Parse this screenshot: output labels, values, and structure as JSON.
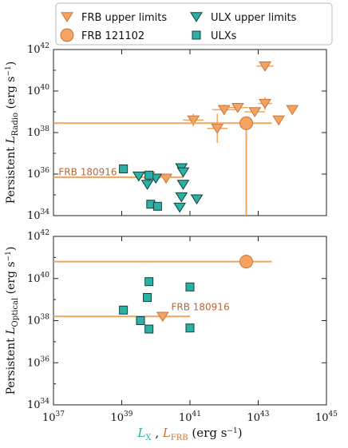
{
  "colors": {
    "frb": "#F4A460",
    "frb_edge": "#C8753A",
    "frb_line": "#F2A35E",
    "ulx": "#2AB0A4",
    "ulx_edge": "#13403C",
    "annot": "#B8693A",
    "axis_label_x": "#2AB0A4",
    "axis_label_frb": "#C8753A"
  },
  "legend": {
    "items": [
      {
        "label": "FRB upper limits",
        "marker": "triangle-down",
        "color": "frb"
      },
      {
        "label": "ULX upper limits",
        "marker": "triangle-down",
        "color": "ulx"
      },
      {
        "label": "FRB 121102",
        "marker": "circle",
        "color": "frb"
      },
      {
        "label": "ULXs",
        "marker": "square",
        "color": "ulx"
      }
    ]
  },
  "x_axis": {
    "label_part1": "L",
    "label_sub1": "X",
    "label_sep": " , ",
    "label_part2": "L",
    "label_sub2": "FRB",
    "label_units": " (erg s",
    "label_units_exp": "−1",
    "label_units_end": ")",
    "scale": "log",
    "xlim": [
      37,
      45
    ],
    "ticks": [
      {
        "exp": 37,
        "base": "10",
        "sup": "37"
      },
      {
        "exp": 39,
        "base": "10",
        "sup": "39"
      },
      {
        "exp": 41,
        "base": "10",
        "sup": "41"
      },
      {
        "exp": 43,
        "base": "10",
        "sup": "43"
      },
      {
        "exp": 45,
        "base": "10",
        "sup": "45"
      }
    ]
  },
  "chart_data": [
    {
      "type": "scatter",
      "panel": "top",
      "ylabel_prefix": "Persistent ",
      "ylabel_L": "L",
      "ylabel_sub": "Radio",
      "ylabel_units": " (erg s",
      "ylabel_exp": "−1",
      "ylabel_end": ")",
      "scale": "log",
      "ylim": [
        34,
        42
      ],
      "yticks": [
        {
          "exp": 34,
          "base": "10",
          "sup": "34"
        },
        {
          "exp": 36,
          "base": "10",
          "sup": "36"
        },
        {
          "exp": 38,
          "base": "10",
          "sup": "38"
        },
        {
          "exp": 40,
          "base": "10",
          "sup": "40"
        },
        {
          "exp": 42,
          "base": "10",
          "sup": "42"
        }
      ],
      "annotations": [
        {
          "text": "FRB 180916",
          "x": 37.15,
          "y": 35.95
        }
      ],
      "series": [
        {
          "name": "FRB upper limits",
          "marker": "triangle-down",
          "color": "frb",
          "points": [
            {
              "x": 43.2,
              "y": 41.2,
              "xerr": 0.25
            },
            {
              "x": 43.2,
              "y": 39.4,
              "xerr": 0.2,
              "yerr": 0.3
            },
            {
              "x": 42.0,
              "y": 39.1,
              "xerr": 0.35,
              "yerr": 0.25
            },
            {
              "x": 42.4,
              "y": 39.2,
              "xerr": 0.3
            },
            {
              "x": 42.9,
              "y": 39.0,
              "xerr": 0.3
            },
            {
              "x": 41.1,
              "y": 38.6,
              "xerr": 0.3,
              "yerr": 0.3
            },
            {
              "x": 41.8,
              "y": 38.2,
              "xerr": 0.3,
              "yerr": 0.7
            },
            {
              "x": 43.6,
              "y": 38.6
            },
            {
              "x": 44.0,
              "y": 39.1
            },
            {
              "x": 39.8,
              "y": 35.9
            },
            {
              "x": 40.3,
              "y": 35.8
            }
          ]
        },
        {
          "name": "FRB 121102",
          "marker": "circle",
          "color": "frb",
          "points": [
            {
              "x": 42.65,
              "y": 38.45,
              "xerr_lo": 5.65,
              "xerr_hi": 0.75,
              "yerr_lo": 4.45,
              "yerr_hi": 0.05
            }
          ]
        },
        {
          "name": "FRB 180916",
          "marker": "none",
          "color": "frb",
          "points": [
            {
              "x": 37.0,
              "y": 35.85,
              "x_end": 40.8
            }
          ]
        },
        {
          "name": "ULX upper limits",
          "marker": "triangle-down",
          "color": "ulx",
          "points": [
            {
              "x": 39.5,
              "y": 35.9
            },
            {
              "x": 39.75,
              "y": 35.5
            },
            {
              "x": 40.0,
              "y": 35.8
            },
            {
              "x": 40.75,
              "y": 36.3
            },
            {
              "x": 40.8,
              "y": 36.1
            },
            {
              "x": 40.8,
              "y": 35.5
            },
            {
              "x": 40.75,
              "y": 34.9
            },
            {
              "x": 40.7,
              "y": 34.4
            },
            {
              "x": 41.2,
              "y": 34.8
            }
          ]
        },
        {
          "name": "ULXs",
          "marker": "square",
          "color": "ulx",
          "points": [
            {
              "x": 39.05,
              "y": 36.25
            },
            {
              "x": 39.8,
              "y": 35.95
            },
            {
              "x": 39.85,
              "y": 34.55
            },
            {
              "x": 40.05,
              "y": 34.45
            }
          ]
        }
      ]
    },
    {
      "type": "scatter",
      "panel": "bottom",
      "ylabel_prefix": "Persistent ",
      "ylabel_L": "L",
      "ylabel_sub": "Optical",
      "ylabel_units": " (erg s",
      "ylabel_exp": "−1",
      "ylabel_end": ")",
      "scale": "log",
      "ylim": [
        34,
        42
      ],
      "yticks": [
        {
          "exp": 34,
          "base": "10",
          "sup": "34"
        },
        {
          "exp": 36,
          "base": "10",
          "sup": "36"
        },
        {
          "exp": 38,
          "base": "10",
          "sup": "38"
        },
        {
          "exp": 40,
          "base": "10",
          "sup": "40"
        },
        {
          "exp": 42,
          "base": "10",
          "sup": "42"
        }
      ],
      "annotations": [
        {
          "text": "FRB 180916",
          "x": 40.45,
          "y": 38.5
        }
      ],
      "series": [
        {
          "name": "FRB 121102",
          "marker": "circle",
          "color": "frb",
          "points": [
            {
              "x": 42.65,
              "y": 40.8,
              "x_start": 37.0,
              "x_end": 43.4
            }
          ]
        },
        {
          "name": "FRB 180916",
          "marker": "triangle-down",
          "color": "frb",
          "points": [
            {
              "x": 40.2,
              "y": 38.2,
              "x_start": 37.0,
              "x_end": 41.0
            }
          ]
        },
        {
          "name": "ULXs",
          "marker": "square",
          "color": "ulx",
          "points": [
            {
              "x": 39.8,
              "y": 39.85
            },
            {
              "x": 41.0,
              "y": 39.6
            },
            {
              "x": 39.75,
              "y": 39.1
            },
            {
              "x": 39.05,
              "y": 38.5
            },
            {
              "x": 39.55,
              "y": 38.0
            },
            {
              "x": 39.8,
              "y": 37.6
            },
            {
              "x": 41.0,
              "y": 37.65
            }
          ]
        }
      ]
    }
  ]
}
